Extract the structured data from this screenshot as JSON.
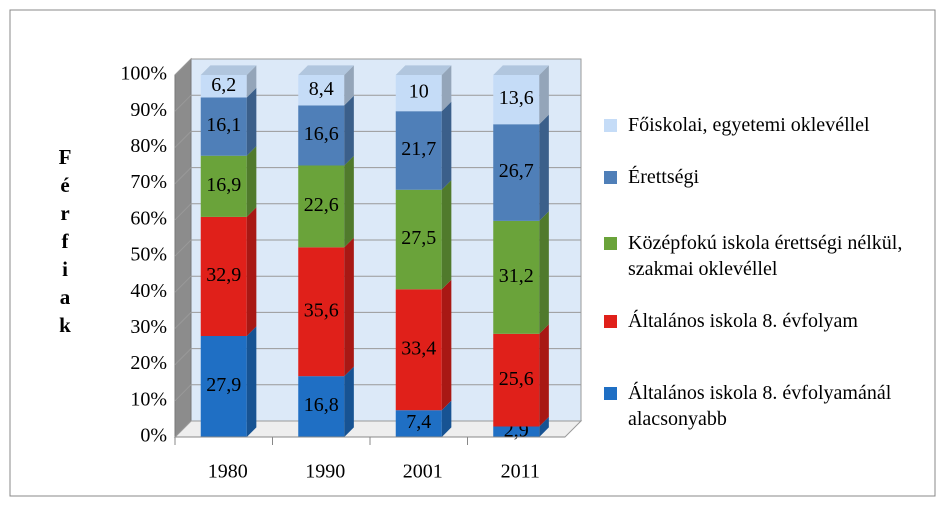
{
  "chart_data": {
    "type": "bar",
    "stacked": true,
    "y_label": "Férfiak",
    "categories": [
      "1980",
      "1990",
      "2001",
      "2011"
    ],
    "series": [
      {
        "name": "Általános iskola 8. évfolyamánál alacsonyabb",
        "color": "#1f6fc4",
        "values": [
          27.9,
          16.8,
          7.4,
          2.9
        ],
        "value_labels": [
          "27,9",
          "16,8",
          "7,4",
          "2,9"
        ]
      },
      {
        "name": "Általános iskola 8. évfolyam",
        "color": "#e0201a",
        "values": [
          32.9,
          35.6,
          33.4,
          25.6
        ],
        "value_labels": [
          "32,9",
          "35,6",
          "33,4",
          "25,6"
        ]
      },
      {
        "name": "Középfokú iskola érettségi nélkül, szakmai oklevéllel",
        "color": "#6aa33a",
        "values": [
          16.9,
          22.6,
          27.5,
          31.2
        ],
        "value_labels": [
          "16,9",
          "22,6",
          "27,5",
          "31,2"
        ]
      },
      {
        "name": "Érettségi",
        "color": "#4f7fb8",
        "values": [
          16.1,
          16.6,
          21.7,
          26.7
        ],
        "value_labels": [
          "16,1",
          "16,6",
          "21,7",
          "26,7"
        ]
      },
      {
        "name": "Főiskolai, egyetemi oklevéllel",
        "color": "#c5dcf7",
        "values": [
          6.2,
          8.4,
          10,
          13.6
        ],
        "value_labels": [
          "6,2",
          "8,4",
          "10",
          "13,6"
        ]
      }
    ],
    "ylim": [
      0,
      100
    ],
    "yticks": [
      {
        "value": 0,
        "label": "0%"
      },
      {
        "value": 10,
        "label": "10%"
      },
      {
        "value": 20,
        "label": "20%"
      },
      {
        "value": 30,
        "label": "30%"
      },
      {
        "value": 40,
        "label": "40%"
      },
      {
        "value": 50,
        "label": "50%"
      },
      {
        "value": 60,
        "label": "60%"
      },
      {
        "value": 70,
        "label": "70%"
      },
      {
        "value": 80,
        "label": "80%"
      },
      {
        "value": 90,
        "label": "90%"
      },
      {
        "value": 100,
        "label": "100%"
      }
    ],
    "grid": true,
    "legend": "right"
  }
}
